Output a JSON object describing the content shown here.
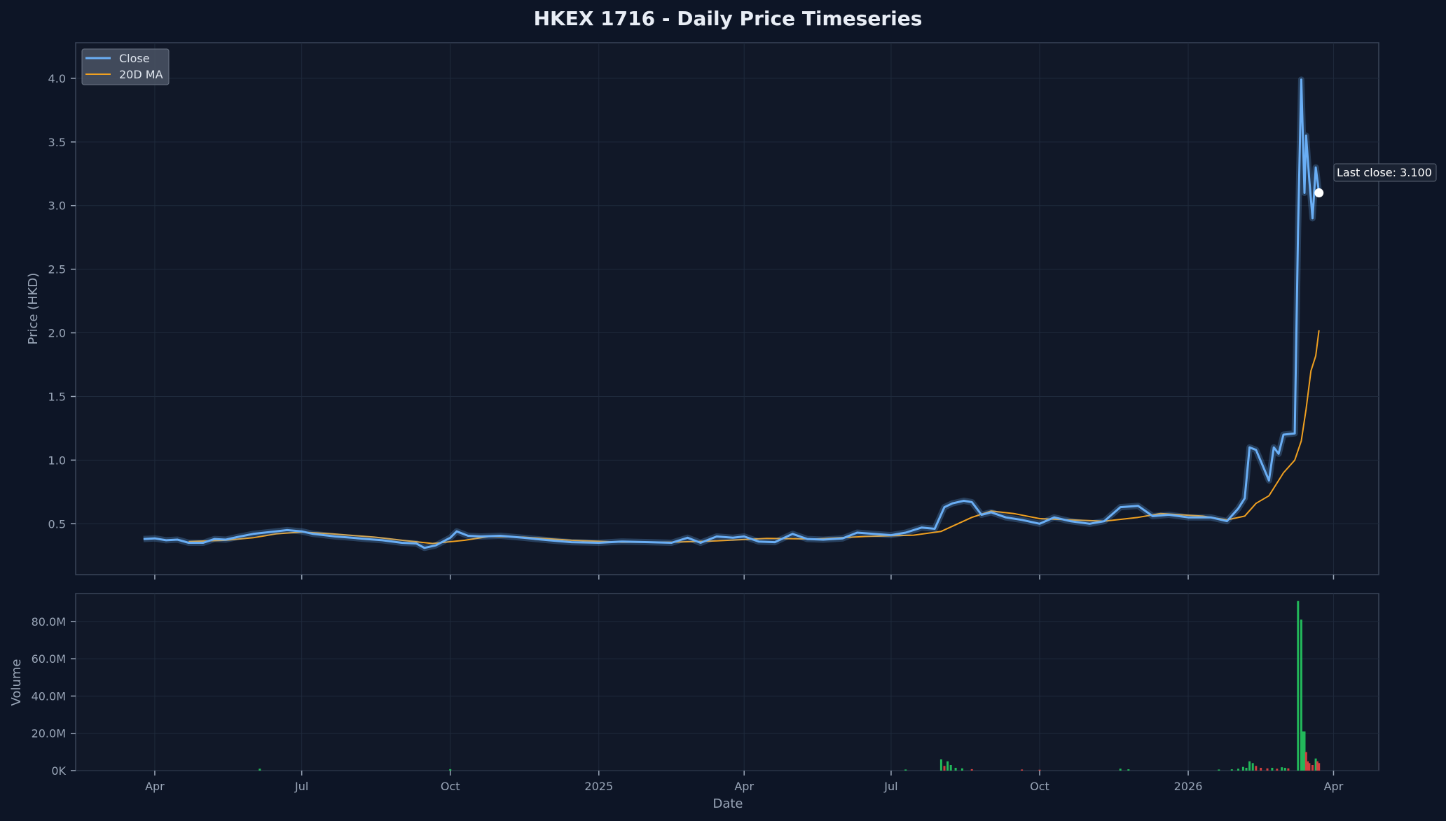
{
  "chart_data": {
    "type": "line",
    "title": "HKEX 1716 - Daily Price Timeseries",
    "xlabel": "Date",
    "ylabel": "Price (HKD)",
    "volume_label": "Volume",
    "x_tick_labels": [
      "Apr",
      "Jul",
      "Oct",
      "2025",
      "Apr",
      "Jul",
      "Oct",
      "2026",
      "Apr"
    ],
    "x_tick_dates": [
      "2024-04-01",
      "2024-07-01",
      "2024-10-01",
      "2025-01-01",
      "2025-04-01",
      "2025-07-01",
      "2025-10-01",
      "2026-01-01",
      "2026-04-01"
    ],
    "xlim": [
      "2024-02-12",
      "2026-04-29"
    ],
    "ylim": [
      0.1,
      4.28
    ],
    "y_tick_labels": [
      "0.5",
      "1.0",
      "1.5",
      "2.0",
      "2.5",
      "3.0",
      "3.5",
      "4.0"
    ],
    "y_ticks": [
      0.5,
      1.0,
      1.5,
      2.0,
      2.5,
      3.0,
      3.5,
      4.0
    ],
    "volume_ylim": [
      0,
      95000000
    ],
    "volume_tick_labels": [
      "0K",
      "20.0M",
      "40.0M",
      "60.0M",
      "80.0M"
    ],
    "volume_ticks": [
      0,
      20000000,
      40000000,
      60000000,
      80000000
    ],
    "legend": {
      "position": "top-left",
      "entries": [
        "Close",
        "20D MA"
      ]
    },
    "grid": true,
    "annotation": {
      "text": "Last close: 3.100",
      "date": "2026-03-23",
      "value": 3.1
    },
    "colors": {
      "close": "#6aaef5",
      "ma": "#f0a020",
      "volume_up": "#22b85a",
      "volume_down": "#d04040",
      "background": "#0d1526",
      "panel": "#111828"
    },
    "series": [
      {
        "name": "Close",
        "points": [
          [
            "2024-03-25",
            0.38
          ],
          [
            "2024-04-01",
            0.385
          ],
          [
            "2024-04-08",
            0.37
          ],
          [
            "2024-04-15",
            0.375
          ],
          [
            "2024-04-22",
            0.35
          ],
          [
            "2024-05-01",
            0.35
          ],
          [
            "2024-05-08",
            0.38
          ],
          [
            "2024-05-15",
            0.375
          ],
          [
            "2024-05-22",
            0.395
          ],
          [
            "2024-06-01",
            0.42
          ],
          [
            "2024-06-08",
            0.43
          ],
          [
            "2024-06-15",
            0.44
          ],
          [
            "2024-06-22",
            0.45
          ],
          [
            "2024-07-01",
            0.44
          ],
          [
            "2024-07-08",
            0.42
          ],
          [
            "2024-07-15",
            0.41
          ],
          [
            "2024-07-22",
            0.4
          ],
          [
            "2024-08-01",
            0.39
          ],
          [
            "2024-08-10",
            0.38
          ],
          [
            "2024-08-20",
            0.37
          ],
          [
            "2024-09-01",
            0.35
          ],
          [
            "2024-09-10",
            0.345
          ],
          [
            "2024-09-15",
            0.31
          ],
          [
            "2024-09-22",
            0.33
          ],
          [
            "2024-10-01",
            0.39
          ],
          [
            "2024-10-05",
            0.44
          ],
          [
            "2024-10-12",
            0.405
          ],
          [
            "2024-10-20",
            0.4
          ],
          [
            "2024-11-01",
            0.405
          ],
          [
            "2024-11-15",
            0.39
          ],
          [
            "2024-12-01",
            0.37
          ],
          [
            "2024-12-15",
            0.355
          ],
          [
            "2025-01-01",
            0.35
          ],
          [
            "2025-01-15",
            0.36
          ],
          [
            "2025-02-01",
            0.355
          ],
          [
            "2025-02-15",
            0.35
          ],
          [
            "2025-02-25",
            0.39
          ],
          [
            "2025-03-05",
            0.35
          ],
          [
            "2025-03-15",
            0.4
          ],
          [
            "2025-03-25",
            0.39
          ],
          [
            "2025-04-01",
            0.4
          ],
          [
            "2025-04-10",
            0.36
          ],
          [
            "2025-04-20",
            0.355
          ],
          [
            "2025-05-01",
            0.42
          ],
          [
            "2025-05-10",
            0.38
          ],
          [
            "2025-05-20",
            0.375
          ],
          [
            "2025-06-01",
            0.385
          ],
          [
            "2025-06-10",
            0.43
          ],
          [
            "2025-06-20",
            0.42
          ],
          [
            "2025-07-01",
            0.41
          ],
          [
            "2025-07-10",
            0.43
          ],
          [
            "2025-07-20",
            0.47
          ],
          [
            "2025-07-28",
            0.46
          ],
          [
            "2025-08-03",
            0.63
          ],
          [
            "2025-08-08",
            0.66
          ],
          [
            "2025-08-15",
            0.68
          ],
          [
            "2025-08-20",
            0.67
          ],
          [
            "2025-08-26",
            0.57
          ],
          [
            "2025-09-01",
            0.59
          ],
          [
            "2025-09-10",
            0.55
          ],
          [
            "2025-09-20",
            0.53
          ],
          [
            "2025-10-01",
            0.5
          ],
          [
            "2025-10-10",
            0.55
          ],
          [
            "2025-10-20",
            0.52
          ],
          [
            "2025-11-01",
            0.5
          ],
          [
            "2025-11-10",
            0.52
          ],
          [
            "2025-11-20",
            0.63
          ],
          [
            "2025-12-01",
            0.64
          ],
          [
            "2025-12-10",
            0.56
          ],
          [
            "2025-12-20",
            0.57
          ],
          [
            "2026-01-01",
            0.55
          ],
          [
            "2026-01-15",
            0.55
          ],
          [
            "2026-01-25",
            0.52
          ],
          [
            "2026-02-01",
            0.62
          ],
          [
            "2026-02-05",
            0.7
          ],
          [
            "2026-02-08",
            1.1
          ],
          [
            "2026-02-12",
            1.08
          ],
          [
            "2026-02-16",
            0.96
          ],
          [
            "2026-02-20",
            0.84
          ],
          [
            "2026-02-23",
            1.1
          ],
          [
            "2026-02-26",
            1.05
          ],
          [
            "2026-03-01",
            1.2
          ],
          [
            "2026-03-08",
            1.21
          ],
          [
            "2026-03-10",
            2.8
          ],
          [
            "2026-03-12",
            3.99
          ],
          [
            "2026-03-14",
            3.1
          ],
          [
            "2026-03-15",
            3.55
          ],
          [
            "2026-03-17",
            3.2
          ],
          [
            "2026-03-19",
            2.9
          ],
          [
            "2026-03-21",
            3.3
          ],
          [
            "2026-03-23",
            3.1
          ]
        ]
      },
      {
        "name": "20D MA",
        "points": [
          [
            "2024-04-22",
            0.36
          ],
          [
            "2024-05-15",
            0.37
          ],
          [
            "2024-06-01",
            0.39
          ],
          [
            "2024-06-15",
            0.42
          ],
          [
            "2024-07-01",
            0.435
          ],
          [
            "2024-07-20",
            0.42
          ],
          [
            "2024-08-15",
            0.395
          ],
          [
            "2024-09-01",
            0.37
          ],
          [
            "2024-09-20",
            0.345
          ],
          [
            "2024-10-10",
            0.37
          ],
          [
            "2024-10-25",
            0.4
          ],
          [
            "2024-11-15",
            0.395
          ],
          [
            "2024-12-15",
            0.37
          ],
          [
            "2025-01-15",
            0.355
          ],
          [
            "2025-02-15",
            0.355
          ],
          [
            "2025-03-15",
            0.365
          ],
          [
            "2025-04-15",
            0.385
          ],
          [
            "2025-05-15",
            0.38
          ],
          [
            "2025-06-15",
            0.4
          ],
          [
            "2025-07-15",
            0.41
          ],
          [
            "2025-08-01",
            0.44
          ],
          [
            "2025-08-20",
            0.55
          ],
          [
            "2025-09-01",
            0.6
          ],
          [
            "2025-09-15",
            0.58
          ],
          [
            "2025-10-01",
            0.54
          ],
          [
            "2025-10-20",
            0.53
          ],
          [
            "2025-11-10",
            0.52
          ],
          [
            "2025-12-01",
            0.55
          ],
          [
            "2025-12-15",
            0.58
          ],
          [
            "2026-01-10",
            0.56
          ],
          [
            "2026-01-25",
            0.53
          ],
          [
            "2026-02-05",
            0.56
          ],
          [
            "2026-02-12",
            0.66
          ],
          [
            "2026-02-20",
            0.72
          ],
          [
            "2026-03-01",
            0.9
          ],
          [
            "2026-03-08",
            1.0
          ],
          [
            "2026-03-12",
            1.15
          ],
          [
            "2026-03-15",
            1.4
          ],
          [
            "2026-03-18",
            1.7
          ],
          [
            "2026-03-21",
            1.82
          ],
          [
            "2026-03-23",
            2.02
          ]
        ]
      }
    ],
    "volume": [
      [
        "2024-06-05",
        1000000,
        "up"
      ],
      [
        "2024-10-01",
        800000,
        "up"
      ],
      [
        "2025-07-10",
        600000,
        "up"
      ],
      [
        "2025-08-01",
        6000000,
        "up"
      ],
      [
        "2025-08-03",
        2500000,
        "down"
      ],
      [
        "2025-08-05",
        5000000,
        "up"
      ],
      [
        "2025-08-07",
        3000000,
        "up"
      ],
      [
        "2025-08-10",
        1500000,
        "up"
      ],
      [
        "2025-08-14",
        1200000,
        "up"
      ],
      [
        "2025-08-20",
        800000,
        "down"
      ],
      [
        "2025-09-20",
        600000,
        "down"
      ],
      [
        "2025-10-01",
        500000,
        "down"
      ],
      [
        "2025-11-20",
        1000000,
        "up"
      ],
      [
        "2025-11-25",
        700000,
        "up"
      ],
      [
        "2026-01-20",
        600000,
        "up"
      ],
      [
        "2026-01-28",
        700000,
        "up"
      ],
      [
        "2026-02-01",
        1000000,
        "up"
      ],
      [
        "2026-02-04",
        2000000,
        "up"
      ],
      [
        "2026-02-06",
        1500000,
        "up"
      ],
      [
        "2026-02-08",
        5000000,
        "up"
      ],
      [
        "2026-02-10",
        4000000,
        "up"
      ],
      [
        "2026-02-12",
        2500000,
        "down"
      ],
      [
        "2026-02-15",
        1500000,
        "down"
      ],
      [
        "2026-02-19",
        1200000,
        "down"
      ],
      [
        "2026-02-22",
        1500000,
        "up"
      ],
      [
        "2026-02-25",
        1000000,
        "down"
      ],
      [
        "2026-02-28",
        1800000,
        "up"
      ],
      [
        "2026-03-02",
        1500000,
        "up"
      ],
      [
        "2026-03-04",
        1200000,
        "down"
      ],
      [
        "2026-03-10",
        91000000,
        "up"
      ],
      [
        "2026-03-12",
        81000000,
        "up"
      ],
      [
        "2026-03-13",
        21000000,
        "up"
      ],
      [
        "2026-03-14",
        21000000,
        "up"
      ],
      [
        "2026-03-15",
        10000000,
        "down"
      ],
      [
        "2026-03-16",
        5000000,
        "down"
      ],
      [
        "2026-03-17",
        4000000,
        "down"
      ],
      [
        "2026-03-19",
        3000000,
        "down"
      ],
      [
        "2026-03-21",
        6500000,
        "up"
      ],
      [
        "2026-03-22",
        5000000,
        "down"
      ],
      [
        "2026-03-23",
        4000000,
        "down"
      ]
    ]
  }
}
